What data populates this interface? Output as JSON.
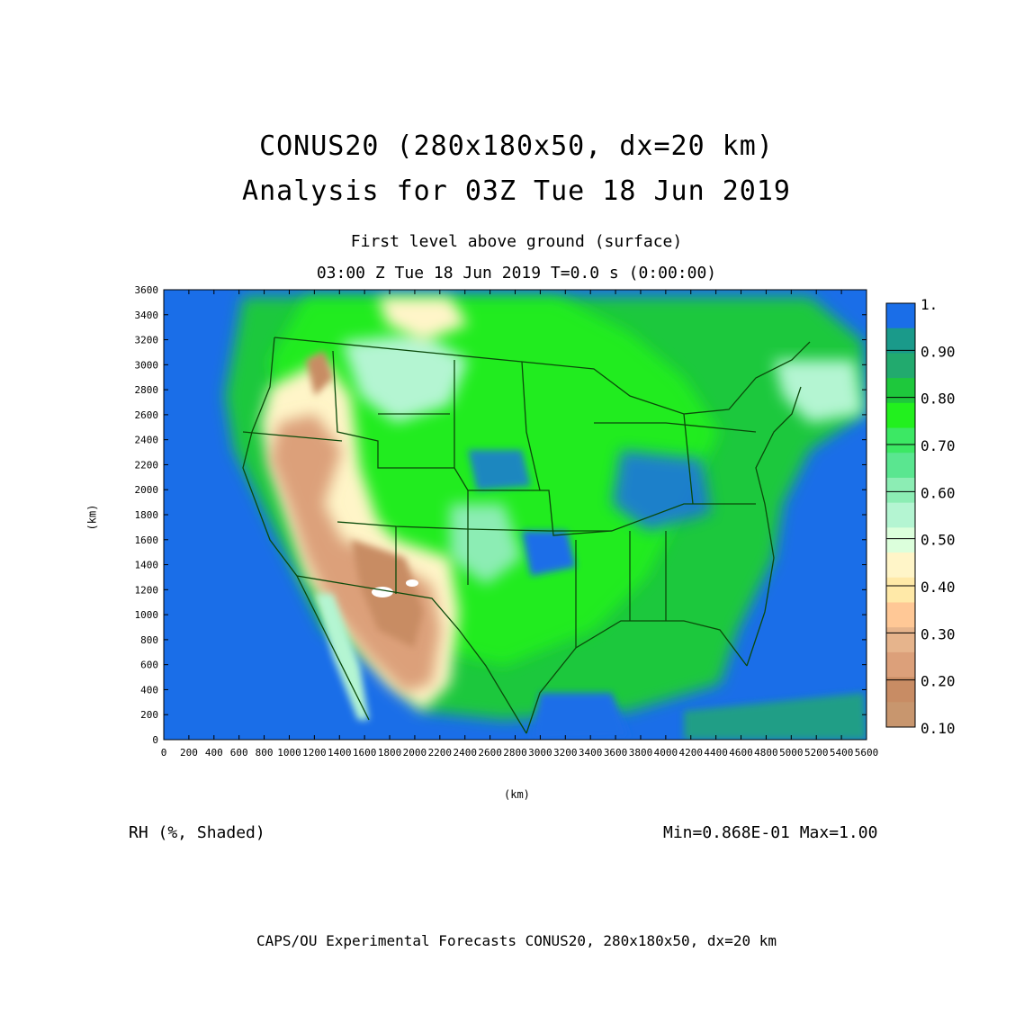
{
  "header": {
    "title_line1": "CONUS20 (280x180x50, dx=20 km)",
    "title_line2": "Analysis for 03Z Tue 18 Jun 2019",
    "subtitle_line1": "First level above ground (surface)",
    "subtitle_line2": "03:00 Z Tue 18 Jun 2019    T=0.0 s (0:00:00)"
  },
  "axes": {
    "x_label": "(km)",
    "y_label": "(km)",
    "x_ticks": [
      "0",
      "200",
      "400",
      "600",
      "800",
      "1000",
      "1200",
      "1400",
      "1600",
      "1800",
      "2000",
      "2200",
      "2400",
      "2600",
      "2800",
      "3000",
      "3200",
      "3400",
      "3600",
      "3800",
      "4000",
      "4200",
      "4400",
      "4600",
      "4800",
      "5000",
      "5200",
      "5400",
      "5600"
    ],
    "y_ticks": [
      "0",
      "200",
      "400",
      "600",
      "800",
      "1000",
      "1200",
      "1400",
      "1600",
      "1800",
      "2000",
      "2200",
      "2400",
      "2600",
      "2800",
      "3000",
      "3200",
      "3400",
      "3600"
    ],
    "x_range": [
      0,
      5600
    ],
    "y_range": [
      0,
      3600
    ]
  },
  "colorbar": {
    "labels": [
      "1.",
      "0.90",
      "0.80",
      "0.70",
      "0.60",
      "0.50",
      "0.40",
      "0.30",
      "0.20",
      "0.10"
    ],
    "colors": [
      "#1a6ee8",
      "#1a9a8a",
      "#22aa6e",
      "#1ec83c",
      "#22f01e",
      "#3ce864",
      "#5ae690",
      "#8cedb4",
      "#b4f5d2",
      "#dcffdc",
      "#fff5c8",
      "#ffe9a8",
      "#ffc896",
      "#e6b48c",
      "#dca07a",
      "#c88c64",
      "#c8966e"
    ]
  },
  "labels": {
    "variable": "RH (%, Shaded)",
    "minmax": "Min=0.868E-01 Max=1.00",
    "footer": "CAPS/OU Experimental Forecasts  CONUS20, 280x180x50, dx=20 km"
  }
}
